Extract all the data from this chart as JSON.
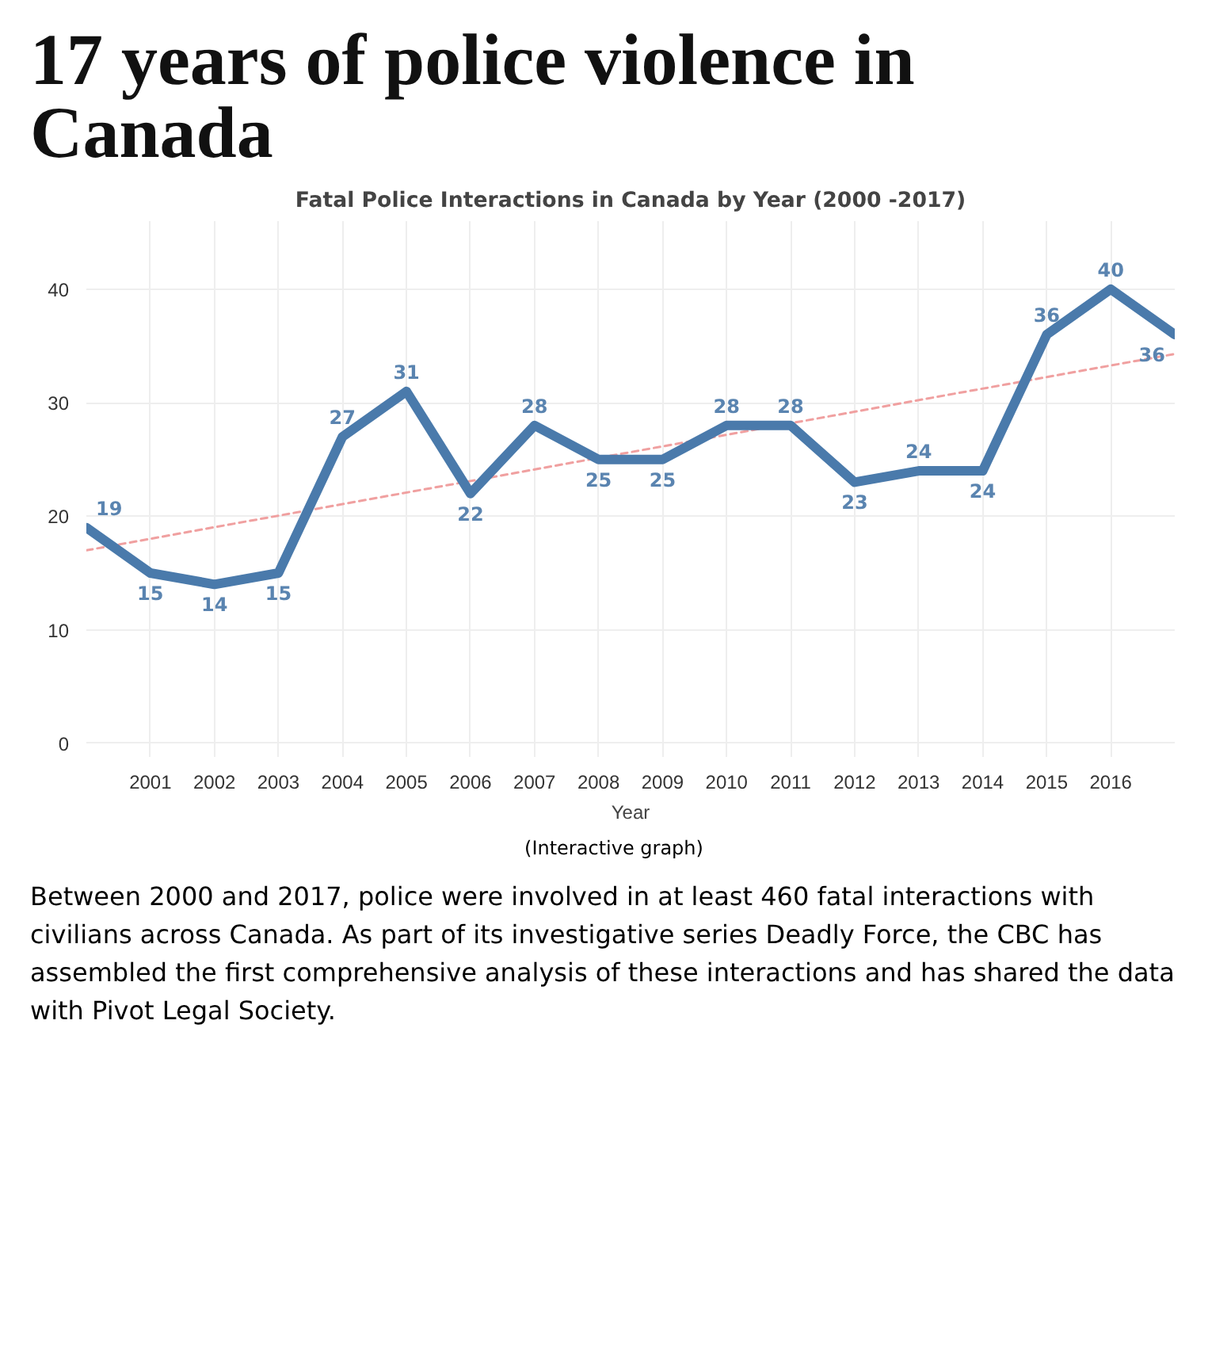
{
  "chart_data": {
    "type": "line",
    "title": "17 years of police violence in Canada",
    "subtitle": "Fatal Police Interactions in Canada by Year (2000 -2017)",
    "xlabel": "Year",
    "x": [
      2000,
      2001,
      2002,
      2003,
      2004,
      2005,
      2006,
      2007,
      2008,
      2009,
      2010,
      2011,
      2012,
      2013,
      2014,
      2015,
      2016,
      2017
    ],
    "series": [
      {
        "color": "#4a7aab",
        "values": [
          19,
          15,
          14,
          15,
          27,
          31,
          22,
          28,
          25,
          25,
          28,
          28,
          23,
          24,
          24,
          36,
          40,
          36
        ],
        "data_labels": true
      },
      {
        "type": "line",
        "color": "#f0a0a0",
        "line_style": "dashed",
        "x": [
          2000,
          2017
        ],
        "values": [
          17,
          34.3
        ]
      }
    ],
    "xlim": [
      2000,
      2017
    ],
    "xticks": [
      2001,
      2002,
      2003,
      2004,
      2005,
      2006,
      2007,
      2008,
      2009,
      2010,
      2011,
      2012,
      2013,
      2014,
      2015,
      2016
    ],
    "ylim": [
      -1.2,
      46
    ],
    "yticks": [
      0,
      10,
      20,
      30,
      40
    ],
    "grid": true,
    "annotations": [
      "(Interactive graph)",
      "Between 2000 and 2017, police were involved in at least 460 fatal interactions with civilians across Canada. As part of its investigative series Deadly Force, the CBC has assembled the first comprehensive analysis of these interactions and has shared the data with Pivot Legal Society."
    ]
  }
}
